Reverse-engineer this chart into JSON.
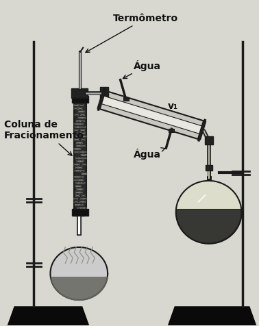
{
  "bg_color": "#d8d8d0",
  "labels": {
    "termometro": "Termômetro",
    "agua_top": "Água",
    "v1": "v₁",
    "agua_bottom": "Água",
    "coluna": "Coluna de\nFracionamento"
  },
  "colors": {
    "apparatus": "#1a1a1a",
    "stand": "#1a1a1a",
    "flask_liquid": "#2a2a2a",
    "base": "#0a0a0a",
    "column_fill": "#3a3a3a",
    "condenser_outer": "#b0b0a8",
    "condenser_inner": "#e0e0d8",
    "text": "#111111",
    "line_color": "#1a1a1a",
    "bg_fill": "#e8e8e0"
  },
  "figsize": [
    3.78,
    4.76
  ],
  "dpi": 100
}
